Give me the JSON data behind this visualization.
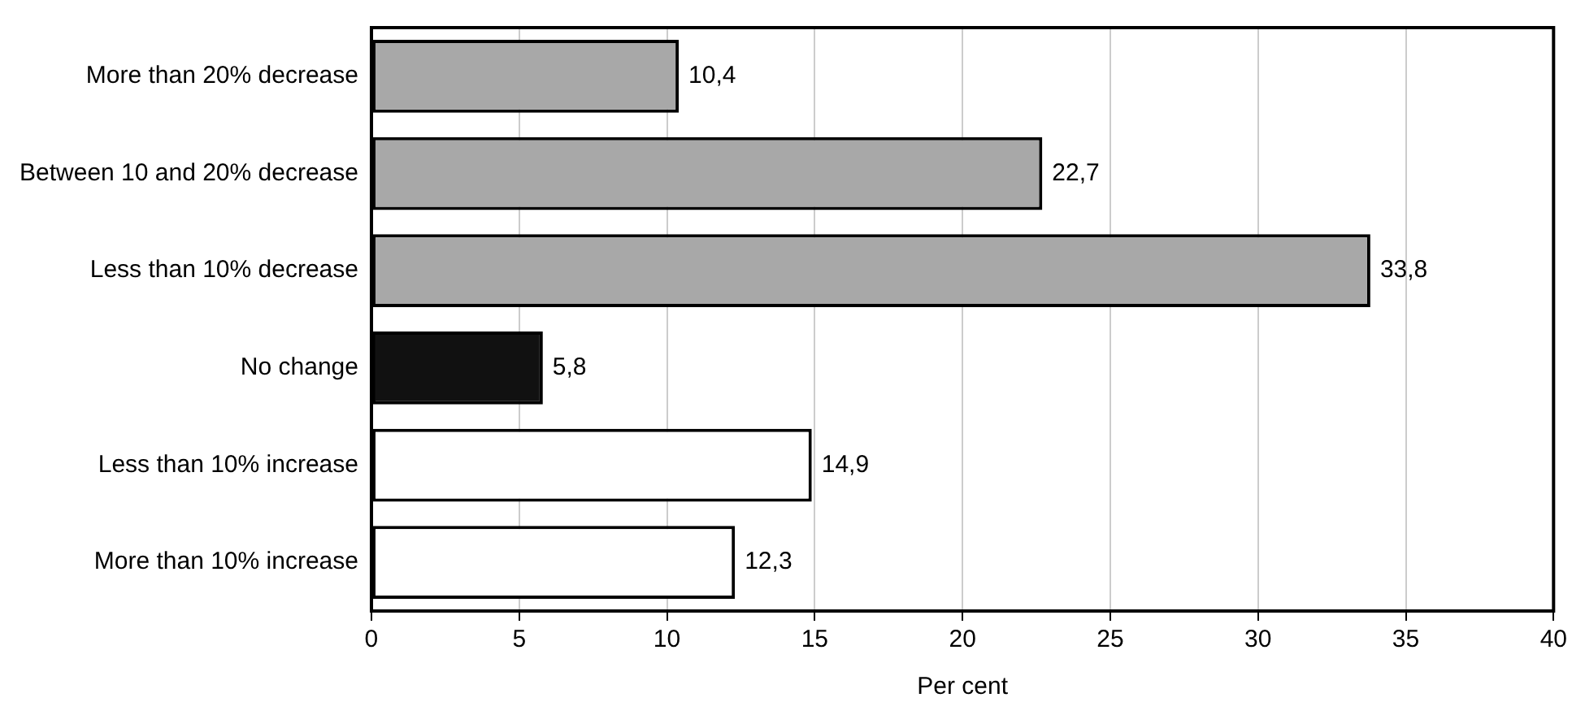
{
  "chart_data": {
    "type": "bar",
    "orientation": "horizontal",
    "xlabel": "Per cent",
    "categories": [
      "More than 20% decrease",
      "Between 10 and 20% decrease",
      "Less than 10% decrease",
      "No change",
      "Less than 10% increase",
      "More than 10% increase"
    ],
    "values": [
      10.4,
      22.7,
      33.8,
      5.8,
      14.9,
      12.3
    ],
    "value_labels": [
      "10,4",
      "22,7",
      "33,8",
      "5,8",
      "14,9",
      "12,3"
    ],
    "colors": [
      "#a8a8a8",
      "#a8a8a8",
      "#a8a8a8",
      "#111111",
      "#ffffff",
      "#ffffff"
    ],
    "xlim": [
      0,
      40
    ],
    "xticks": [
      0,
      5,
      10,
      15,
      20,
      25,
      30,
      35,
      40
    ],
    "grid": "x",
    "legend": false
  }
}
